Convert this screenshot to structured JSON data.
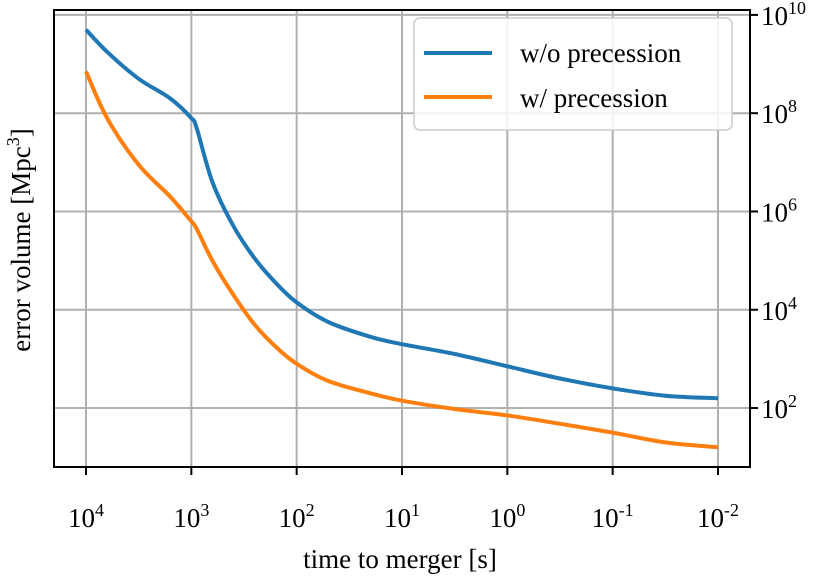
{
  "chart_data": {
    "type": "line",
    "title": "",
    "xlabel": "time to merger [s]",
    "ylabel_main": "error volume [Mpc",
    "ylabel_sup": "3",
    "ylabel_end": "]",
    "x_scale": "log",
    "x_inverted": true,
    "y_scale": "log",
    "y_axis_side": "right",
    "xlim_exp": [
      4,
      -2
    ],
    "ylim_exp": [
      0.8,
      10.1
    ],
    "grid": true,
    "legend_position": "top-right",
    "x_ticks": [
      {
        "base": "10",
        "exp": "4",
        "value_exp": 4
      },
      {
        "base": "10",
        "exp": "3",
        "value_exp": 3
      },
      {
        "base": "10",
        "exp": "2",
        "value_exp": 2
      },
      {
        "base": "10",
        "exp": "1",
        "value_exp": 1
      },
      {
        "base": "10",
        "exp": "0",
        "value_exp": 0
      },
      {
        "base": "10",
        "exp": "-1",
        "value_exp": -1
      },
      {
        "base": "10",
        "exp": "-2",
        "value_exp": -2
      }
    ],
    "y_ticks": [
      {
        "base": "10",
        "exp": "2",
        "value_exp": 2
      },
      {
        "base": "10",
        "exp": "4",
        "value_exp": 4
      },
      {
        "base": "10",
        "exp": "6",
        "value_exp": 6
      },
      {
        "base": "10",
        "exp": "8",
        "value_exp": 8
      },
      {
        "base": "10",
        "exp": "10",
        "value_exp": 10
      }
    ],
    "series": [
      {
        "name": "w/o precession",
        "color": "#1f77b4",
        "log10_x": [
          4,
          3.8,
          3.5,
          3.2,
          3.0,
          2.95,
          2.8,
          2.6,
          2.4,
          2.2,
          2.0,
          1.7,
          1.3,
          1.0,
          0.5,
          0.0,
          -0.5,
          -1.0,
          -1.5,
          -2.0
        ],
        "log10_y": [
          9.7,
          9.25,
          8.7,
          8.3,
          7.9,
          7.7,
          6.6,
          5.7,
          5.05,
          4.55,
          4.15,
          3.75,
          3.45,
          3.3,
          3.1,
          2.85,
          2.6,
          2.4,
          2.25,
          2.2
        ]
      },
      {
        "name": "w/ precession",
        "color": "#ff7f0e",
        "log10_x": [
          4,
          3.8,
          3.5,
          3.2,
          3.0,
          2.95,
          2.8,
          2.6,
          2.4,
          2.2,
          2.0,
          1.7,
          1.3,
          1.0,
          0.5,
          0.0,
          -0.5,
          -1.0,
          -1.5,
          -2.0
        ],
        "log10_y": [
          8.85,
          7.9,
          6.95,
          6.3,
          5.8,
          5.65,
          5.0,
          4.3,
          3.7,
          3.25,
          2.9,
          2.55,
          2.3,
          2.15,
          1.98,
          1.85,
          1.68,
          1.5,
          1.3,
          1.2
        ]
      }
    ]
  }
}
